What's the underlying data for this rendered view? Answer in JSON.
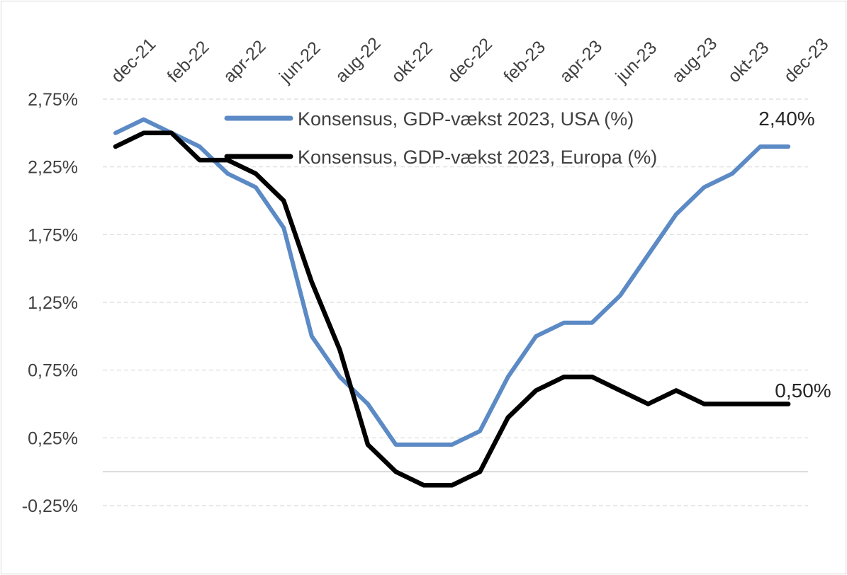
{
  "chart_data": {
    "type": "line",
    "title": "",
    "xlabel": "",
    "ylabel": "",
    "x_tick_labels": [
      "dec-21",
      "feb-22",
      "apr-22",
      "jun-22",
      "aug-22",
      "okt-22",
      "dec-22",
      "feb-23",
      "apr-23",
      "jun-23",
      "aug-23",
      "okt-23",
      "dec-23"
    ],
    "y_tick_labels": [
      "2,75%",
      "2,25%",
      "1,75%",
      "1,25%",
      "0,75%",
      "0,25%",
      "-0,25%"
    ],
    "y_ticks": [
      2.75,
      2.25,
      1.75,
      1.25,
      0.75,
      0.25,
      -0.25
    ],
    "ylim": [
      -0.25,
      2.75
    ],
    "x_axis_position": "top",
    "grid": "horizontal dashed",
    "legend_position": "top-right",
    "series": [
      {
        "name": "Konsensus, GDP-vækst 2023, USA (%)",
        "color": "#5b8ac5",
        "values": [
          2.5,
          2.6,
          2.5,
          2.4,
          2.2,
          2.1,
          1.8,
          1.0,
          0.7,
          0.5,
          0.2,
          0.2,
          0.2,
          0.3,
          0.7,
          1.0,
          1.1,
          1.1,
          1.3,
          1.6,
          1.9,
          2.1,
          2.2,
          2.4,
          2.4
        ],
        "end_label": "2,40%"
      },
      {
        "name": "Konsensus, GDP-vækst 2023, Europa (%)",
        "color": "#000000",
        "values": [
          2.4,
          2.5,
          2.5,
          2.3,
          2.3,
          2.2,
          2.0,
          1.4,
          0.9,
          0.2,
          0.0,
          -0.1,
          -0.1,
          0.0,
          0.4,
          0.6,
          0.7,
          0.7,
          0.6,
          0.5,
          0.6,
          0.5,
          0.5,
          0.5,
          0.5
        ],
        "end_label": "0,50%"
      }
    ]
  }
}
